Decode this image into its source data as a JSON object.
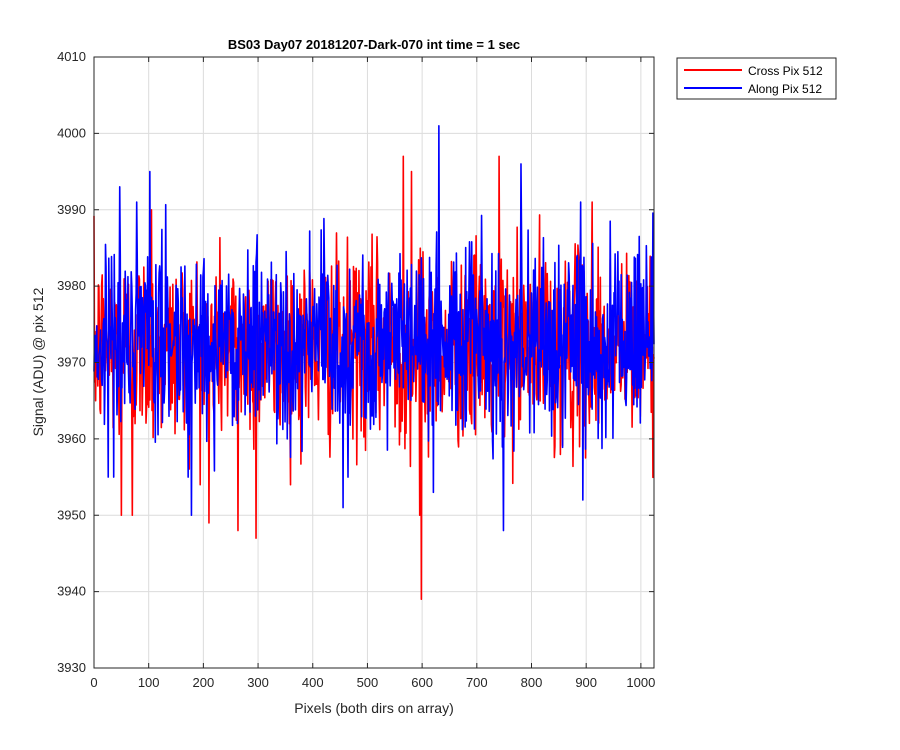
{
  "chart_data": {
    "type": "line",
    "title": "BS03 Day07 20181207-Dark-070 int time = 1 sec",
    "xlabel": "Pixels (both dirs on array)",
    "ylabel": "Signal (ADU) @ pix 512",
    "xlim": [
      0,
      1024
    ],
    "ylim": [
      3930,
      4010
    ],
    "xticks": [
      0,
      100,
      200,
      300,
      400,
      500,
      600,
      700,
      800,
      900,
      1000
    ],
    "yticks": [
      3930,
      3940,
      3950,
      3960,
      3970,
      3980,
      3990,
      4000,
      4010
    ],
    "grid": true,
    "legend": "outside-top-right",
    "series": [
      {
        "name": "Cross Pix 512",
        "color": "#ff0000",
        "mean": 3972,
        "num_points": 1024,
        "extremes": [
          {
            "x": 598,
            "y": 3939
          },
          {
            "x": 595,
            "y": 3950
          },
          {
            "x": 296,
            "y": 3947
          },
          {
            "x": 263,
            "y": 3948
          },
          {
            "x": 210,
            "y": 3949
          },
          {
            "x": 50,
            "y": 3950
          },
          {
            "x": 70,
            "y": 3950
          },
          {
            "x": 565,
            "y": 3997
          },
          {
            "x": 740,
            "y": 3997
          },
          {
            "x": 580,
            "y": 3995
          },
          {
            "x": 105,
            "y": 3990
          },
          {
            "x": 910,
            "y": 3991
          }
        ]
      },
      {
        "name": "Along Pix 512",
        "color": "#0000ff",
        "mean": 3973,
        "num_points": 1024,
        "extremes": [
          {
            "x": 630,
            "y": 4001
          },
          {
            "x": 102,
            "y": 3995
          },
          {
            "x": 47,
            "y": 3993
          },
          {
            "x": 780,
            "y": 3996
          },
          {
            "x": 748,
            "y": 3948
          },
          {
            "x": 178,
            "y": 3950
          },
          {
            "x": 455,
            "y": 3951
          },
          {
            "x": 620,
            "y": 3953
          },
          {
            "x": 893,
            "y": 3952
          }
        ]
      }
    ]
  }
}
